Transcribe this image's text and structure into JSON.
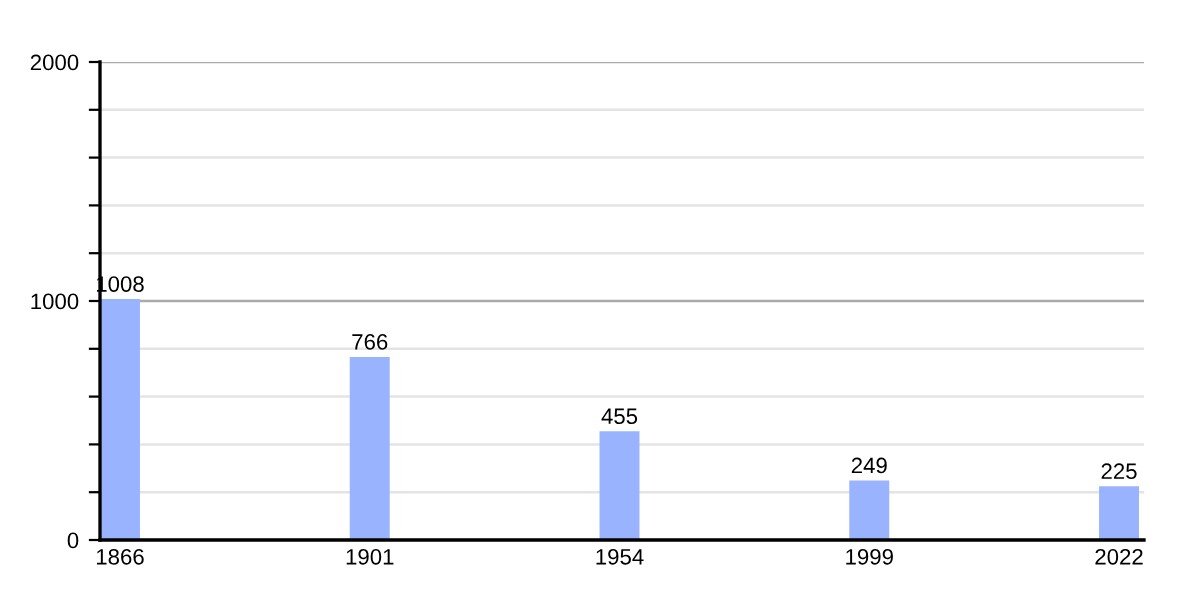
{
  "chart_data": {
    "type": "bar",
    "categories": [
      "1866",
      "1901",
      "1954",
      "1999",
      "2022"
    ],
    "values": [
      1008,
      766,
      455,
      249,
      225
    ],
    "color": "#99b3ff",
    "data_labels": true,
    "ylim": [
      0,
      2000
    ],
    "yticks": [
      0,
      {
        "value": 200,
        "label": null
      },
      {
        "value": 400,
        "label": null
      },
      {
        "value": 600,
        "label": null
      },
      {
        "value": 800,
        "label": null
      },
      1000,
      {
        "value": 1200,
        "label": null
      },
      {
        "value": 1400,
        "label": null
      },
      {
        "value": 1600,
        "label": null
      },
      {
        "value": 1800,
        "label": null
      },
      2000
    ],
    "grid": "y",
    "ref_lines": [
      {
        "axis": "y",
        "value": 1000,
        "color": "#aaaaaa"
      }
    ]
  }
}
